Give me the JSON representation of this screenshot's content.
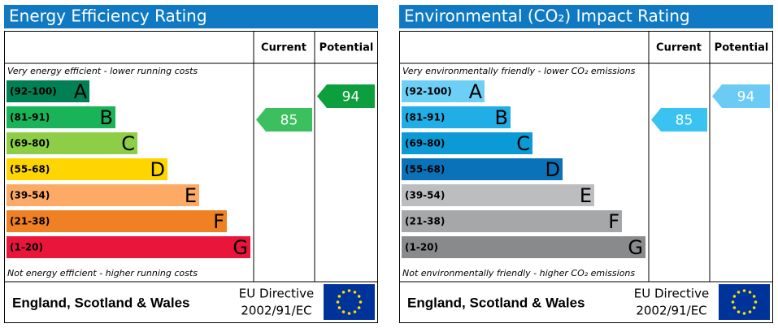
{
  "panels": [
    {
      "title": "Energy Efficiency Rating",
      "col_current": "Current",
      "col_potential": "Potential",
      "top_note": "Very energy efficient - lower running costs",
      "bottom_note": "Not energy efficient - higher running costs",
      "bands": [
        {
          "range": "(92-100)",
          "letter": "A",
          "color": "#008054"
        },
        {
          "range": "(81-91)",
          "letter": "B",
          "color": "#19b459"
        },
        {
          "range": "(69-80)",
          "letter": "C",
          "color": "#8dce46"
        },
        {
          "range": "(55-68)",
          "letter": "D",
          "color": "#ffd500"
        },
        {
          "range": "(39-54)",
          "letter": "E",
          "color": "#fcaa65"
        },
        {
          "range": "(21-38)",
          "letter": "F",
          "color": "#ef8023"
        },
        {
          "range": "(1-20)",
          "letter": "G",
          "color": "#e9153b"
        }
      ],
      "current": 85,
      "current_color": "#3cbf5e",
      "potential": 94,
      "potential_color": "#0d9f3e",
      "footer_region": "England, Scotland & Wales",
      "footer_directive_1": "EU Directive",
      "footer_directive_2": "2002/91/EC"
    },
    {
      "title": "Environmental (CO₂) Impact Rating",
      "col_current": "Current",
      "col_potential": "Potential",
      "top_note": "Very environmentally friendly - lower CO₂ emissions",
      "bottom_note": "Not environmentally friendly - higher CO₂ emissions",
      "bands": [
        {
          "range": "(92-100)",
          "letter": "A",
          "color": "#6dcff6"
        },
        {
          "range": "(81-91)",
          "letter": "B",
          "color": "#21aee6"
        },
        {
          "range": "(69-80)",
          "letter": "C",
          "color": "#0b9ad6"
        },
        {
          "range": "(55-68)",
          "letter": "D",
          "color": "#0a72b8"
        },
        {
          "range": "(39-54)",
          "letter": "E",
          "color": "#bbbdbf"
        },
        {
          "range": "(21-38)",
          "letter": "F",
          "color": "#a5a7a9"
        },
        {
          "range": "(1-20)",
          "letter": "G",
          "color": "#898a8c"
        }
      ],
      "current": 85,
      "current_color": "#3ac3f0",
      "potential": 94,
      "potential_color": "#6ccbf5",
      "footer_region": "England, Scotland & Wales",
      "footer_directive_1": "EU Directive",
      "footer_directive_2": "2002/91/EC"
    }
  ]
}
